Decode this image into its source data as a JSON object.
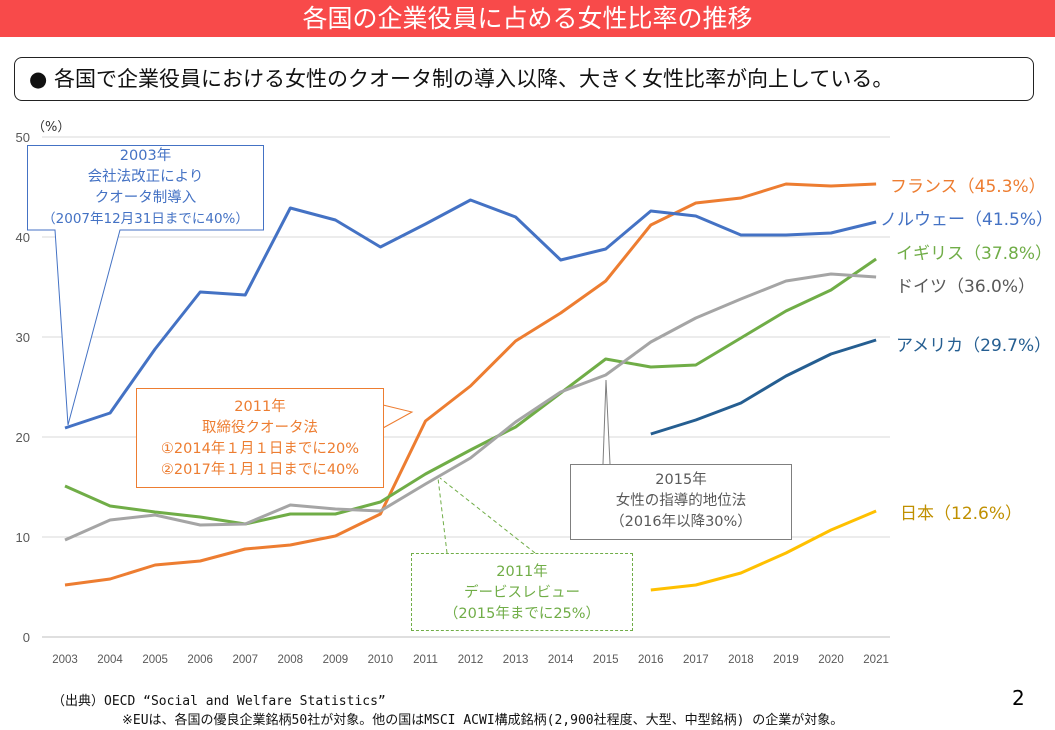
{
  "header": {
    "title": "各国の企業役員に占める女性比率の推移"
  },
  "summary": {
    "bullet": "●",
    "text": "各国で企業役員における女性のクオータ制の導入以降、大きく女性比率が向上している。"
  },
  "annotations": {
    "norway": [
      "2003年",
      "会社法改正により",
      "クオータ制導入",
      "（2007年12月31日までに40%）"
    ],
    "france": [
      "2011年",
      "取締役クオータ法",
      "①2014年１月１日までに20%",
      "②2017年１月１日までに40%"
    ],
    "germany": [
      "2015年",
      "女性の指導的地位法",
      "（2016年以降30%）"
    ],
    "uk": [
      "2011年",
      "デービスレビュー",
      "（2015年までに25%）"
    ]
  },
  "footer": {
    "source": "（出典）OECD “Social and Welfare Statistics”",
    "note": "※EUは、各国の優良企業銘柄50社が対象。他の国はMSCI ACWI構成銘柄(2,900社程度、大型、中型銘柄) の企業が対象。",
    "page": "2"
  },
  "chart_data": {
    "type": "line",
    "ylabel": "（%）",
    "ylim": [
      0,
      50
    ],
    "yticks": [
      "0",
      "10",
      "20",
      "30",
      "40",
      "50"
    ],
    "x": [
      "2003",
      "2004",
      "2005",
      "2006",
      "2007",
      "2008",
      "2009",
      "2010",
      "2011",
      "2012",
      "2013",
      "2014",
      "2015",
      "2016",
      "2017",
      "2018",
      "2019",
      "2020",
      "2021"
    ],
    "grid": true,
    "series": [
      {
        "name": "フランス",
        "label": "フランス（45.3%）",
        "color": "#ed7d31",
        "values": [
          5.2,
          5.8,
          7.2,
          7.6,
          8.8,
          9.2,
          10.1,
          12.3,
          21.6,
          25.1,
          29.6,
          32.4,
          35.6,
          41.2,
          43.4,
          43.9,
          45.3,
          45.1,
          45.3
        ]
      },
      {
        "name": "ノルウェー",
        "label": "ノルウェー（41.5%）",
        "color": "#4472c4",
        "values": [
          20.9,
          22.4,
          28.8,
          34.5,
          34.2,
          42.9,
          41.7,
          39.0,
          41.3,
          43.7,
          42.0,
          37.7,
          38.8,
          42.6,
          42.1,
          40.2,
          40.2,
          40.4,
          41.5
        ]
      },
      {
        "name": "イギリス",
        "label": "イギリス（37.8%）",
        "color": "#70ad47",
        "values": [
          15.1,
          13.1,
          12.5,
          12.0,
          11.3,
          12.3,
          12.3,
          13.5,
          16.3,
          18.7,
          21.0,
          24.4,
          27.8,
          27.0,
          27.2,
          29.9,
          32.6,
          34.7,
          37.8
        ]
      },
      {
        "name": "ドイツ",
        "label": "ドイツ（36.0%）",
        "color": "#a5a5a5",
        "values": [
          9.7,
          11.7,
          12.2,
          11.2,
          11.3,
          13.2,
          12.8,
          12.6,
          15.3,
          17.9,
          21.5,
          24.5,
          26.2,
          29.5,
          31.9,
          33.8,
          35.6,
          36.3,
          36.0
        ]
      },
      {
        "name": "アメリカ",
        "label": "アメリカ（29.7%）",
        "color": "#255e91",
        "values": [
          null,
          null,
          null,
          null,
          null,
          null,
          null,
          null,
          null,
          null,
          null,
          null,
          null,
          20.3,
          21.7,
          23.4,
          26.1,
          28.3,
          29.7
        ]
      },
      {
        "name": "日本",
        "label": "日本（12.6%）",
        "color": "#ffc000",
        "values": [
          null,
          null,
          null,
          null,
          null,
          null,
          null,
          null,
          null,
          null,
          null,
          null,
          null,
          4.7,
          5.2,
          6.4,
          8.4,
          10.7,
          12.6
        ]
      }
    ]
  }
}
